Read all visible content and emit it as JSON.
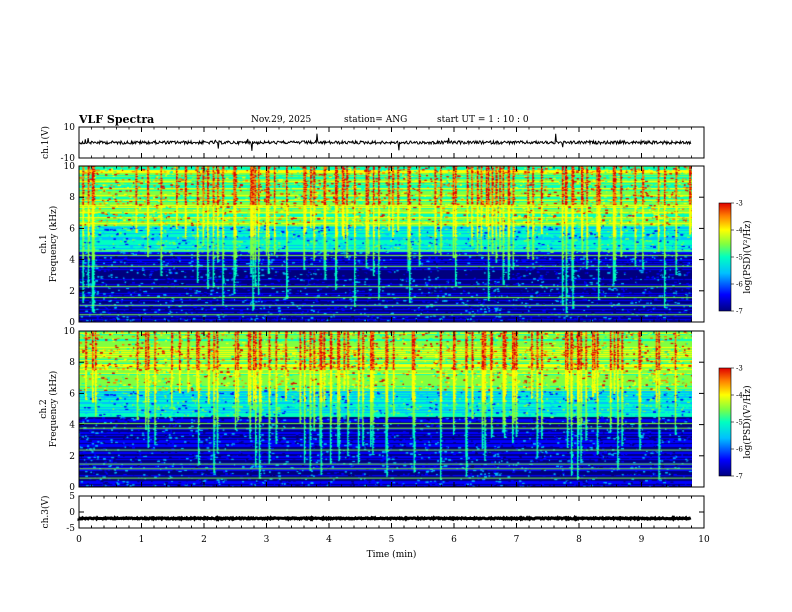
{
  "header": {
    "title": "VLF Spectra",
    "date": "Nov.29, 2025",
    "station": "station= ANG",
    "start": "start  UT =   1 : 10 : 0"
  },
  "chart_data": [
    {
      "type": "line",
      "panel": "ch1-waveform",
      "ylabel": "ch.1(V)",
      "ylim": [
        -10,
        10
      ],
      "yticks": [
        10,
        -10
      ],
      "baseline": 0,
      "series_note": "",
      "x_range_min": [
        0,
        9.8
      ]
    },
    {
      "type": "heatmap",
      "panel": "ch1-spectrogram",
      "ylabel_line1": "ch.1",
      "ylabel_line2": "Frequency  (kHz)",
      "ylim": [
        0,
        10
      ],
      "yticks": [
        0,
        2,
        4,
        6,
        8,
        10
      ],
      "x_range_min": [
        0,
        9.8
      ],
      "colorbar": {
        "label": "log(PSD)(V²/Hz)",
        "range": [
          -7,
          -3
        ],
        "ticks": [
          -3,
          -4,
          -5,
          -6,
          -7
        ]
      }
    },
    {
      "type": "heatmap",
      "panel": "ch2-spectrogram",
      "ylabel_line1": "ch.2",
      "ylabel_line2": "Frequency  (kHz)",
      "ylim": [
        0,
        10
      ],
      "yticks": [
        0,
        2,
        4,
        6,
        8,
        10
      ],
      "x_range_min": [
        0,
        9.8
      ],
      "colorbar": {
        "label": "log(PSD)(V²/Hz)",
        "range": [
          -7,
          -3
        ],
        "ticks": [
          -3,
          -4,
          -5,
          -6,
          -7
        ]
      }
    },
    {
      "type": "line",
      "panel": "ch3-waveform",
      "ylabel": "ch.3(V)",
      "ylim": [
        -5,
        5
      ],
      "yticks": [
        5,
        0,
        -5
      ],
      "baseline": -2,
      "x_range_min": [
        0,
        9.8
      ]
    }
  ],
  "xaxis": {
    "label": "Time  (min)",
    "range": [
      0,
      10
    ],
    "ticks": [
      0,
      1,
      2,
      3,
      4,
      5,
      6,
      7,
      8,
      9,
      10
    ]
  },
  "colors": {
    "colormap": [
      "#00007f",
      "#0000ff",
      "#00c0ff",
      "#00ffc0",
      "#80ff40",
      "#ffff00",
      "#ff8000",
      "#e00000"
    ],
    "line": "#000000"
  }
}
